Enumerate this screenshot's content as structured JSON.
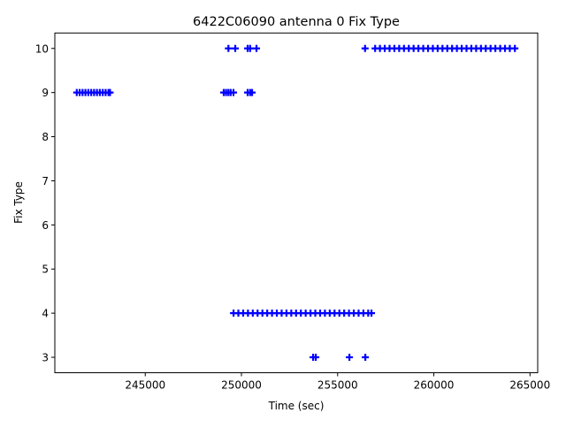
{
  "chart_data": {
    "type": "scatter",
    "title": "6422C06090 antenna 0 Fix Type",
    "xlabel": "Time (sec)",
    "ylabel": "Fix Type",
    "xlim": [
      240300,
      265400
    ],
    "ylim": [
      2.65,
      10.35
    ],
    "xticks": [
      245000,
      250000,
      255000,
      260000,
      265000
    ],
    "xtick_labels": [
      "245000",
      "250000",
      "255000",
      "260000",
      "265000"
    ],
    "yticks": [
      3,
      4,
      5,
      6,
      7,
      8,
      9,
      10
    ],
    "ytick_labels": [
      "3",
      "4",
      "5",
      "6",
      "7",
      "8",
      "9",
      "10"
    ],
    "grid": false,
    "marker": "+",
    "color": "#0000ff",
    "points_by_fix_type": [
      {
        "y": 9,
        "x": [
          241440,
          241590,
          241740,
          241890,
          242040,
          242190,
          242340,
          242490,
          242640,
          242790,
          242940,
          243090,
          243170,
          249080,
          249200,
          249320,
          249440,
          249586,
          250322,
          250450,
          250552
        ]
      },
      {
        "y": 10,
        "x": [
          249324,
          249678,
          250322,
          250450,
          250782,
          256426,
          256950,
          257200,
          257450,
          257700,
          257950,
          258200,
          258450,
          258700,
          258950,
          259200,
          259450,
          259700,
          259950,
          260200,
          260450,
          260700,
          260950,
          261200,
          261450,
          261700,
          261950,
          262200,
          262450,
          262700,
          262950,
          263200,
          263450,
          263700,
          263950,
          264214
        ]
      },
      {
        "y": 4,
        "x": [
          249590,
          249840,
          250090,
          250340,
          250590,
          250840,
          251090,
          251340,
          251590,
          251840,
          252090,
          252340,
          252590,
          252840,
          253090,
          253340,
          253590,
          253840,
          254090,
          254340,
          254590,
          254840,
          255090,
          255340,
          255590,
          255840,
          256090,
          256340,
          256590,
          256760
        ]
      },
      {
        "y": 3,
        "x": [
          253726,
          253864,
          255612,
          256440
        ]
      }
    ]
  }
}
